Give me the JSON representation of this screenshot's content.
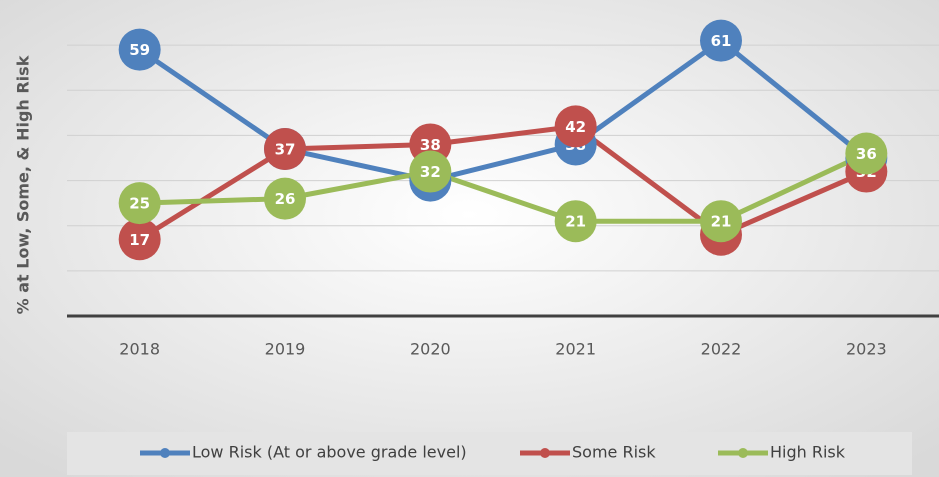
{
  "chart_data": {
    "type": "line",
    "y_label": "% at Low, Some, & High Risk",
    "categories": [
      "2018",
      "2019",
      "2020",
      "2021",
      "2022",
      "2023"
    ],
    "series": [
      {
        "name": "Low Risk (At or above grade level)",
        "color": "#4f81bd",
        "values": [
          59,
          37,
          30,
          38,
          61,
          35
        ]
      },
      {
        "name": "Some Risk",
        "color": "#c0504d",
        "values": [
          17,
          37,
          38,
          42,
          18,
          32
        ]
      },
      {
        "name": "High Risk",
        "color": "#9bbb59",
        "values": [
          25,
          26,
          32,
          21,
          21,
          36
        ]
      }
    ],
    "ylim": [
      0,
      70
    ],
    "yticks": [
      0,
      10,
      20,
      30,
      40,
      50,
      60
    ],
    "grid": true
  }
}
